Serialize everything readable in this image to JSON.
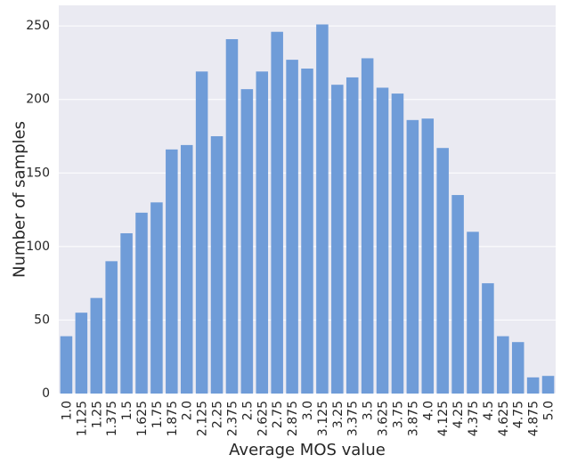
{
  "chart_data": {
    "type": "bar",
    "title": "",
    "xlabel": "Average MOS value",
    "ylabel": "Number of samples",
    "categories": [
      "1.0",
      "1.125",
      "1.25",
      "1.375",
      "1.5",
      "1.625",
      "1.75",
      "1.875",
      "2.0",
      "2.125",
      "2.25",
      "2.375",
      "2.5",
      "2.625",
      "2.75",
      "2.875",
      "3.0",
      "3.125",
      "3.25",
      "3.375",
      "3.5",
      "3.625",
      "3.75",
      "3.875",
      "4.0",
      "4.125",
      "4.25",
      "4.375",
      "4.5",
      "4.625",
      "4.75",
      "4.875",
      "5.0"
    ],
    "values": [
      39,
      55,
      65,
      90,
      109,
      123,
      130,
      166,
      169,
      219,
      175,
      241,
      207,
      219,
      246,
      227,
      221,
      251,
      210,
      215,
      228,
      208,
      204,
      186,
      187,
      167,
      135,
      110,
      75,
      39,
      35,
      11,
      12
    ],
    "ylim": [
      0,
      264
    ],
    "yticks": [
      0,
      50,
      100,
      150,
      200,
      250
    ],
    "grid": true,
    "legend": "none",
    "colors": {
      "bar": "#6f9cd8",
      "background": "#eaeaf2",
      "grid": "#ffffff",
      "text": "#262626"
    }
  }
}
